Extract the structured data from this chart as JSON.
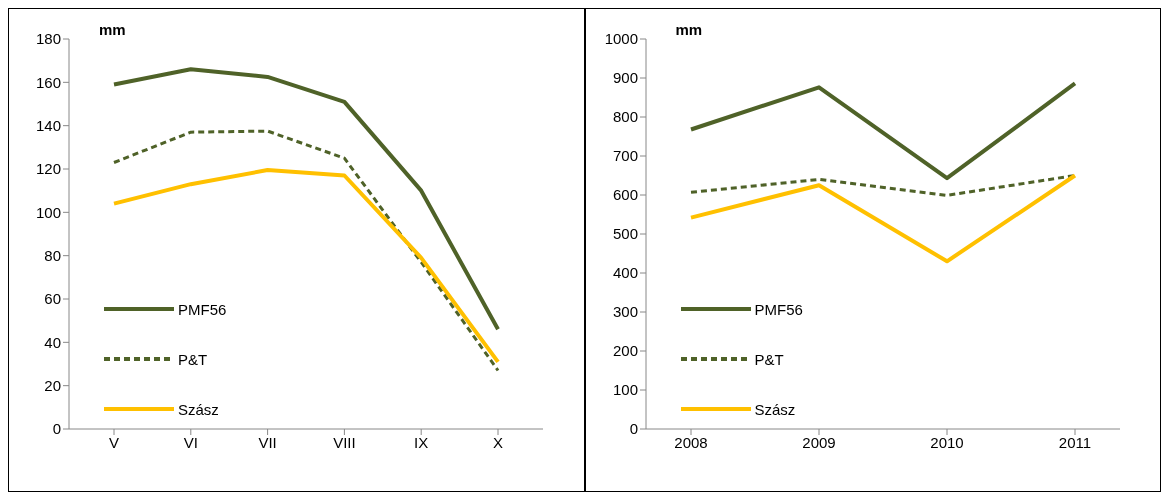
{
  "chart_data": [
    {
      "type": "line",
      "ylabel": "mm",
      "categories": [
        "V",
        "VI",
        "VII",
        "VIII",
        "IX",
        "X"
      ],
      "ylim": [
        0,
        180
      ],
      "yticks": [
        0,
        20,
        40,
        60,
        80,
        100,
        120,
        140,
        160,
        180
      ],
      "grid": false,
      "legend": "bottom left",
      "marker": "none",
      "series": [
        {
          "name": "PMF56",
          "color": "#4f6228",
          "line_style": "solid",
          "values": [
            159,
            166,
            162.5,
            151,
            110,
            46
          ]
        },
        {
          "name": "P&T",
          "color": "#4f6228",
          "line_style": "dashed",
          "values": [
            123,
            137,
            137.5,
            125,
            77,
            27
          ]
        },
        {
          "name": "Szász",
          "color": "#ffc000",
          "line_style": "solid",
          "values": [
            104,
            113,
            119.5,
            117,
            79,
            31
          ]
        }
      ]
    },
    {
      "type": "line",
      "ylabel": "mm",
      "categories": [
        "2008",
        "2009",
        "2010",
        "2011"
      ],
      "ylim": [
        0,
        1000
      ],
      "yticks": [
        0,
        100,
        200,
        300,
        400,
        500,
        600,
        700,
        800,
        900,
        1000
      ],
      "grid": false,
      "legend": "bottom left",
      "marker": "none",
      "series": [
        {
          "name": "PMF56",
          "color": "#4f6228",
          "line_style": "solid",
          "values": [
            768,
            876,
            643,
            886
          ]
        },
        {
          "name": "P&T",
          "color": "#4f6228",
          "line_style": "dashed",
          "values": [
            607,
            640,
            599,
            650
          ]
        },
        {
          "name": "Szász",
          "color": "#ffc000",
          "line_style": "solid",
          "values": [
            542,
            625,
            430,
            650
          ]
        }
      ]
    }
  ]
}
